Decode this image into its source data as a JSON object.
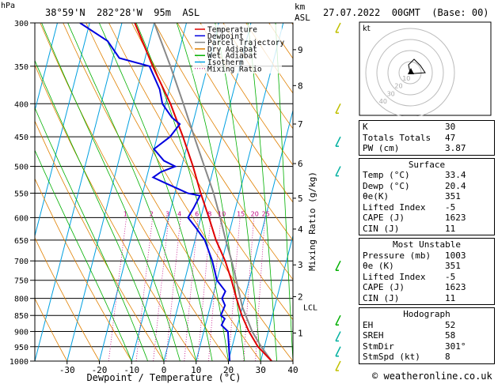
{
  "header": {
    "unit_p": "hPa",
    "location": "38°59'N  282°28'W  95m  ASL",
    "unit_h": "km",
    "unit_h2": "ASL",
    "datetime": "27.07.2022  00GMT  (Base: 00)"
  },
  "chart_data": {
    "type": "skew-t",
    "xlabel": "Dewpoint / Temperature (°C)",
    "ylabel": "Mixing Ratio (g/kg)",
    "pressure_levels": [
      300,
      350,
      400,
      450,
      500,
      550,
      600,
      650,
      700,
      750,
      800,
      850,
      900,
      950,
      1000
    ],
    "temp_ticks": [
      -30,
      -20,
      -10,
      0,
      10,
      20,
      30,
      40
    ],
    "km_ticks": [
      {
        "km": "1",
        "p": 905
      },
      {
        "km": "2",
        "p": 795
      },
      {
        "km": "3",
        "p": 710
      },
      {
        "km": "4",
        "p": 625
      },
      {
        "km": "5",
        "p": 560
      },
      {
        "km": "6",
        "p": 495
      },
      {
        "km": "7",
        "p": 430
      },
      {
        "km": "8",
        "p": 375
      },
      {
        "km": "9",
        "p": 330
      }
    ],
    "lcl_p": 825,
    "lcl_label": "LCL",
    "mixing_ratio_labels": [
      "1",
      "2",
      "3",
      "4",
      "6",
      "8",
      "10",
      "15",
      "20",
      "25"
    ],
    "mixing_ratio_values": [
      1,
      2,
      3,
      4,
      6,
      8,
      10,
      15,
      20,
      25
    ],
    "legend": [
      {
        "name": "Temperature",
        "color": "#e00000"
      },
      {
        "name": "Dewpoint",
        "color": "#0000e0"
      },
      {
        "name": "Parcel Trajectory",
        "color": "#888888"
      },
      {
        "name": "Dry Adiabat",
        "color": "#e08000"
      },
      {
        "name": "Wet Adiabat",
        "color": "#00b000"
      },
      {
        "name": "Isotherm",
        "color": "#00a0e0"
      },
      {
        "name": "Mixing Ratio",
        "color": "#c00080"
      }
    ],
    "temperature": [
      [
        1000,
        33.4
      ],
      [
        950,
        28
      ],
      [
        900,
        24
      ],
      [
        850,
        20.5
      ],
      [
        800,
        17.5
      ],
      [
        750,
        14.5
      ],
      [
        700,
        11
      ],
      [
        650,
        6.5
      ],
      [
        600,
        2.5
      ],
      [
        550,
        -2
      ],
      [
        500,
        -6.5
      ],
      [
        450,
        -12
      ],
      [
        400,
        -18.5
      ],
      [
        350,
        -27
      ],
      [
        300,
        -36
      ]
    ],
    "dewpoint": [
      [
        1000,
        20.4
      ],
      [
        950,
        19
      ],
      [
        900,
        17.5
      ],
      [
        880,
        15
      ],
      [
        860,
        15.5
      ],
      [
        850,
        14
      ],
      [
        820,
        14.5
      ],
      [
        800,
        13
      ],
      [
        780,
        13.5
      ],
      [
        750,
        10
      ],
      [
        700,
        7
      ],
      [
        650,
        3
      ],
      [
        620,
        -1
      ],
      [
        600,
        -4
      ],
      [
        580,
        -3
      ],
      [
        555,
        -2
      ],
      [
        550,
        -6
      ],
      [
        530,
        -14
      ],
      [
        520,
        -18
      ],
      [
        510,
        -16
      ],
      [
        500,
        -12
      ],
      [
        490,
        -16
      ],
      [
        470,
        -20
      ],
      [
        450,
        -16
      ],
      [
        430,
        -14
      ],
      [
        420,
        -17
      ],
      [
        400,
        -21
      ],
      [
        380,
        -23
      ],
      [
        350,
        -28
      ],
      [
        340,
        -38
      ],
      [
        320,
        -43
      ],
      [
        300,
        -53
      ]
    ],
    "parcel": [
      [
        1000,
        33.4
      ],
      [
        950,
        29
      ],
      [
        900,
        25
      ],
      [
        825,
        20
      ],
      [
        750,
        16
      ],
      [
        700,
        13
      ],
      [
        650,
        9.5
      ],
      [
        600,
        6
      ],
      [
        550,
        2
      ],
      [
        500,
        -3
      ],
      [
        450,
        -8.5
      ],
      [
        400,
        -14.5
      ],
      [
        350,
        -21.5
      ],
      [
        300,
        -30
      ]
    ]
  },
  "wind_barbs": [
    {
      "p": 1000,
      "color": "#c0c000"
    },
    {
      "p": 950,
      "color": "#00b0a0"
    },
    {
      "p": 900,
      "color": "#00b0a0"
    },
    {
      "p": 850,
      "color": "#00b000"
    },
    {
      "p": 700,
      "color": "#00b000"
    },
    {
      "p": 500,
      "color": "#00b0a0"
    },
    {
      "p": 450,
      "color": "#00b0a0"
    },
    {
      "p": 400,
      "color": "#c0c000"
    },
    {
      "p": 300,
      "color": "#c0c000"
    }
  ],
  "hodograph": {
    "label": "kt",
    "ring_labels": [
      "10",
      "20",
      "30",
      "40"
    ]
  },
  "indices": [
    {
      "label": "K",
      "value": "30"
    },
    {
      "label": "Totals Totals",
      "value": "47"
    },
    {
      "label": "PW (cm)",
      "value": "3.87"
    }
  ],
  "surface": {
    "title": "Surface",
    "rows": [
      {
        "label": "Temp (°C)",
        "value": "33.4"
      },
      {
        "label": "Dewp (°C)",
        "value": "20.4"
      },
      {
        "label": "θe(K)",
        "value": "351"
      },
      {
        "label": "Lifted Index",
        "value": "-5"
      },
      {
        "label": "CAPE (J)",
        "value": "1623"
      },
      {
        "label": "CIN (J)",
        "value": "11"
      }
    ]
  },
  "most_unstable": {
    "title": "Most Unstable",
    "rows": [
      {
        "label": "Pressure (mb)",
        "value": "1003"
      },
      {
        "label": "θe (K)",
        "value": "351"
      },
      {
        "label": "Lifted Index",
        "value": "-5"
      },
      {
        "label": "CAPE (J)",
        "value": "1623"
      },
      {
        "label": "CIN (J)",
        "value": "11"
      }
    ]
  },
  "hodograph_box": {
    "title": "Hodograph",
    "rows": [
      {
        "label": "EH",
        "value": "52"
      },
      {
        "label": "SREH",
        "value": "58"
      },
      {
        "label": "StmDir",
        "value": "301°"
      },
      {
        "label": "StmSpd (kt)",
        "value": "8"
      }
    ]
  },
  "footer": {
    "copyright": "©",
    "site": "weatheronline.co.uk"
  }
}
